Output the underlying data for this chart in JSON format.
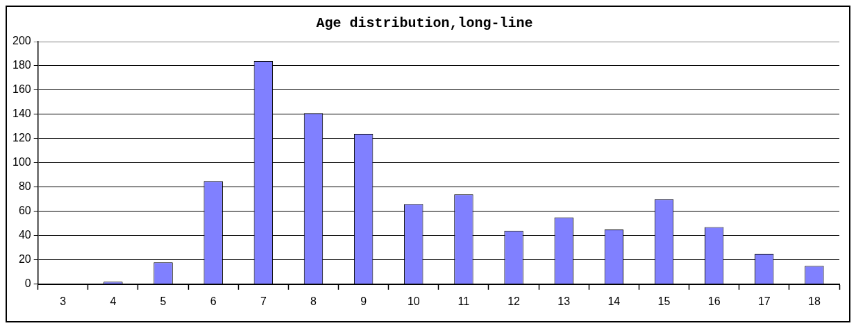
{
  "chart_data": {
    "type": "bar",
    "title": "Age distribution,long-line",
    "categories": [
      "3",
      "4",
      "5",
      "6",
      "7",
      "8",
      "9",
      "10",
      "11",
      "12",
      "13",
      "14",
      "15",
      "16",
      "17",
      "18"
    ],
    "values": [
      0,
      2,
      18,
      85,
      184,
      141,
      124,
      66,
      74,
      44,
      55,
      45,
      70,
      47,
      25,
      15
    ],
    "color": "#8080ff",
    "ylim": [
      0,
      200
    ],
    "yticks": [
      0,
      20,
      40,
      60,
      80,
      100,
      120,
      140,
      160,
      180,
      200
    ],
    "grid": "y",
    "legend": false
  }
}
